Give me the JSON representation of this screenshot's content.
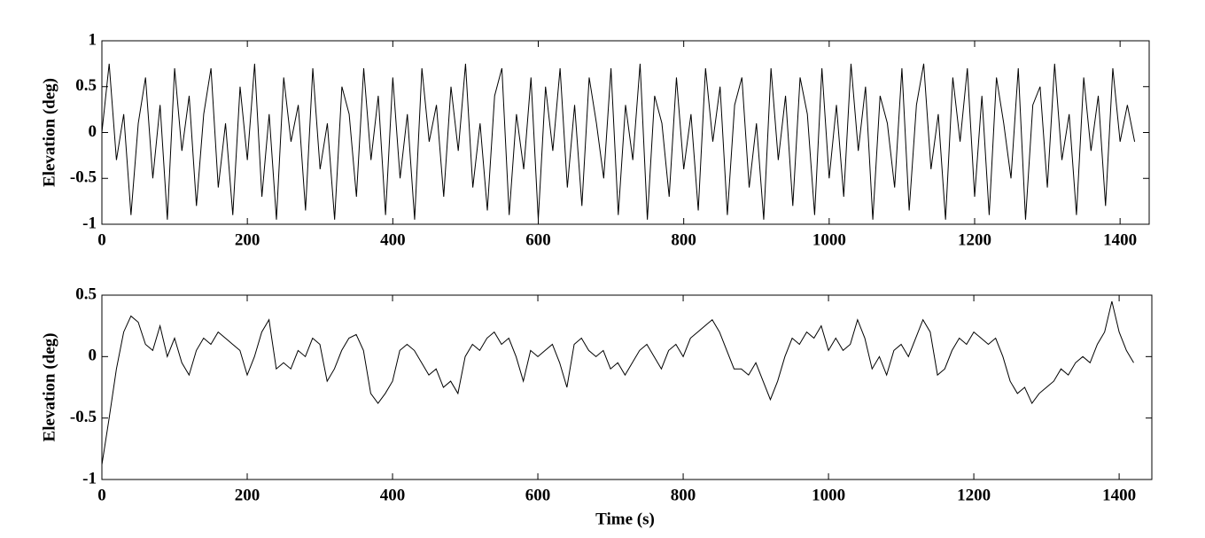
{
  "chart_data": [
    {
      "type": "line",
      "ylabel": "Elevation (deg)",
      "color": "#000000",
      "xlim": [
        0,
        1440
      ],
      "xticks": [
        0,
        200,
        400,
        600,
        800,
        1000,
        1200,
        1400
      ],
      "ylim": [
        -1,
        1
      ],
      "yticks": [
        -1,
        -0.5,
        0,
        0.5,
        1
      ],
      "x": [
        0,
        10,
        20,
        30,
        40,
        50,
        60,
        70,
        80,
        90,
        100,
        110,
        120,
        130,
        140,
        150,
        160,
        170,
        180,
        190,
        200,
        210,
        220,
        230,
        240,
        250,
        260,
        270,
        280,
        290,
        300,
        310,
        320,
        330,
        340,
        350,
        360,
        370,
        380,
        390,
        400,
        410,
        420,
        430,
        440,
        450,
        460,
        470,
        480,
        490,
        500,
        510,
        520,
        530,
        540,
        550,
        560,
        570,
        580,
        590,
        600,
        610,
        620,
        630,
        640,
        650,
        660,
        670,
        680,
        690,
        700,
        710,
        720,
        730,
        740,
        750,
        760,
        770,
        780,
        790,
        800,
        810,
        820,
        830,
        840,
        850,
        860,
        870,
        880,
        890,
        900,
        910,
        920,
        930,
        940,
        950,
        960,
        970,
        980,
        990,
        1000,
        1010,
        1020,
        1030,
        1040,
        1050,
        1060,
        1070,
        1080,
        1090,
        1100,
        1110,
        1120,
        1130,
        1140,
        1150,
        1160,
        1170,
        1180,
        1190,
        1200,
        1210,
        1220,
        1230,
        1240,
        1250,
        1260,
        1270,
        1280,
        1290,
        1300,
        1310,
        1320,
        1330,
        1340,
        1350,
        1360,
        1370,
        1380,
        1390,
        1400,
        1410,
        1420
      ],
      "values": [
        0,
        0.75,
        -0.3,
        0.2,
        -0.9,
        0.1,
        0.6,
        -0.5,
        0.3,
        -0.95,
        0.7,
        -0.2,
        0.4,
        -0.8,
        0.2,
        0.7,
        -0.6,
        0.1,
        -0.9,
        0.5,
        -0.3,
        0.75,
        -0.7,
        0.2,
        -0.95,
        0.6,
        -0.1,
        0.3,
        -0.85,
        0.7,
        -0.4,
        0.1,
        -0.95,
        0.5,
        0.2,
        -0.7,
        0.7,
        -0.3,
        0.4,
        -0.9,
        0.6,
        -0.5,
        0.2,
        -0.95,
        0.7,
        -0.1,
        0.3,
        -0.7,
        0.5,
        -0.2,
        0.75,
        -0.6,
        0.1,
        -0.85,
        0.4,
        0.7,
        -0.9,
        0.2,
        -0.4,
        0.6,
        -0.95,
        0.5,
        -0.2,
        0.7,
        -0.6,
        0.3,
        -0.8,
        0.6,
        0.1,
        -0.5,
        0.7,
        -0.9,
        0.3,
        -0.3,
        0.75,
        -0.95,
        0.4,
        0.1,
        -0.7,
        0.6,
        -0.4,
        0.2,
        -0.85,
        0.7,
        -0.1,
        0.5,
        -0.9,
        0.3,
        0.6,
        -0.6,
        0.1,
        -0.95,
        0.7,
        -0.3,
        0.4,
        -0.8,
        0.6,
        0.2,
        -0.9,
        0.7,
        -0.5,
        0.3,
        -0.7,
        0.75,
        -0.2,
        0.5,
        -0.95,
        0.4,
        0.1,
        -0.6,
        0.7,
        -0.85,
        0.3,
        0.75,
        -0.4,
        0.2,
        -0.95,
        0.6,
        -0.1,
        0.7,
        -0.7,
        0.4,
        -0.9,
        0.6,
        0.1,
        -0.5,
        0.7,
        -0.95,
        0.3,
        0.5,
        -0.6,
        0.75,
        -0.3,
        0.2,
        -0.9,
        0.6,
        -0.2,
        0.4,
        -0.8,
        0.7,
        -0.1,
        0.3,
        -0.1
      ]
    },
    {
      "type": "line",
      "ylabel": "Elevation (deg)",
      "xlabel": "Time (s)",
      "color": "#000000",
      "xlim": [
        0,
        1445
      ],
      "xticks": [
        0,
        200,
        400,
        600,
        800,
        1000,
        1200,
        1400
      ],
      "ylim": [
        -1,
        0.5
      ],
      "yticks": [
        -1,
        -0.5,
        0,
        0.5
      ],
      "x": [
        0,
        10,
        20,
        30,
        40,
        50,
        60,
        70,
        80,
        90,
        100,
        110,
        120,
        130,
        140,
        150,
        160,
        170,
        180,
        190,
        200,
        210,
        220,
        230,
        240,
        250,
        260,
        270,
        280,
        290,
        300,
        310,
        320,
        330,
        340,
        350,
        360,
        370,
        380,
        390,
        400,
        410,
        420,
        430,
        440,
        450,
        460,
        470,
        480,
        490,
        500,
        510,
        520,
        530,
        540,
        550,
        560,
        570,
        580,
        590,
        600,
        610,
        620,
        630,
        640,
        650,
        660,
        670,
        680,
        690,
        700,
        710,
        720,
        730,
        740,
        750,
        760,
        770,
        780,
        790,
        800,
        810,
        820,
        830,
        840,
        850,
        860,
        870,
        880,
        890,
        900,
        910,
        920,
        930,
        940,
        950,
        960,
        970,
        980,
        990,
        1000,
        1010,
        1020,
        1030,
        1040,
        1050,
        1060,
        1070,
        1080,
        1090,
        1100,
        1110,
        1120,
        1130,
        1140,
        1150,
        1160,
        1170,
        1180,
        1190,
        1200,
        1210,
        1220,
        1230,
        1240,
        1250,
        1260,
        1270,
        1280,
        1290,
        1300,
        1310,
        1320,
        1330,
        1340,
        1350,
        1360,
        1370,
        1380,
        1390,
        1400,
        1410,
        1420
      ],
      "values": [
        -0.88,
        -0.5,
        -0.1,
        0.2,
        0.33,
        0.28,
        0.1,
        0.05,
        0.25,
        0.0,
        0.15,
        -0.05,
        -0.15,
        0.05,
        0.15,
        0.1,
        0.2,
        0.15,
        0.1,
        0.05,
        -0.15,
        0.0,
        0.2,
        0.3,
        -0.1,
        -0.05,
        -0.1,
        0.05,
        0.0,
        0.15,
        0.1,
        -0.2,
        -0.1,
        0.05,
        0.15,
        0.18,
        0.05,
        -0.3,
        -0.38,
        -0.3,
        -0.2,
        0.05,
        0.1,
        0.05,
        -0.05,
        -0.15,
        -0.1,
        -0.25,
        -0.2,
        -0.3,
        0.0,
        0.1,
        0.05,
        0.15,
        0.2,
        0.1,
        0.15,
        0.0,
        -0.2,
        0.05,
        0.0,
        0.05,
        0.1,
        -0.05,
        -0.25,
        0.1,
        0.15,
        0.05,
        0.0,
        0.05,
        -0.1,
        -0.05,
        -0.15,
        -0.05,
        0.05,
        0.1,
        0.0,
        -0.1,
        0.05,
        0.1,
        0.0,
        0.15,
        0.2,
        0.25,
        0.3,
        0.2,
        0.05,
        -0.1,
        -0.1,
        -0.15,
        -0.05,
        -0.2,
        -0.35,
        -0.2,
        0.0,
        0.15,
        0.1,
        0.2,
        0.15,
        0.25,
        0.05,
        0.15,
        0.05,
        0.1,
        0.3,
        0.15,
        -0.1,
        0.0,
        -0.15,
        0.05,
        0.1,
        0.0,
        0.15,
        0.3,
        0.2,
        -0.15,
        -0.1,
        0.05,
        0.15,
        0.1,
        0.2,
        0.15,
        0.1,
        0.15,
        0.0,
        -0.2,
        -0.3,
        -0.25,
        -0.38,
        -0.3,
        -0.25,
        -0.2,
        -0.1,
        -0.15,
        -0.05,
        0.0,
        -0.05,
        0.1,
        0.2,
        0.45,
        0.2,
        0.05,
        -0.05
      ]
    }
  ]
}
